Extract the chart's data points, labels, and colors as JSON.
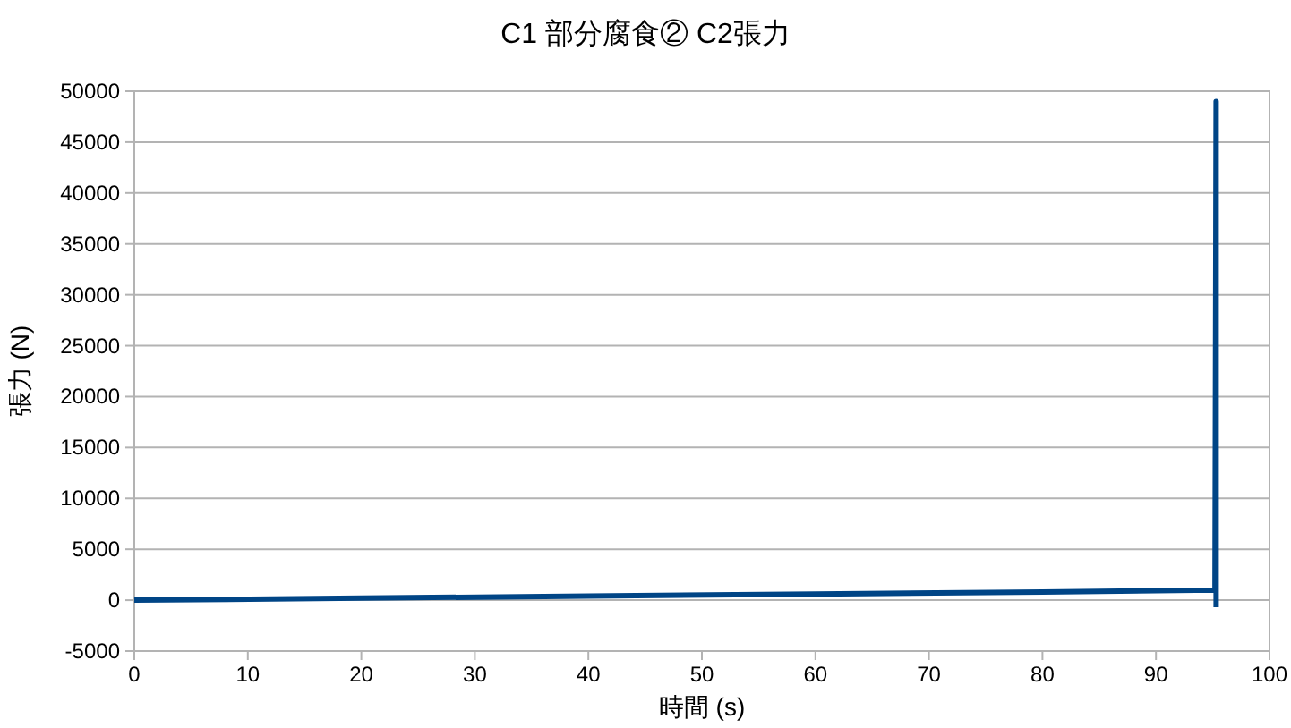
{
  "chart_data": {
    "type": "line",
    "title": "C1 部分腐食② C2張力",
    "xlabel": "時間 (s)",
    "ylabel": "張力 (N)",
    "series": [
      {
        "color": "#004586",
        "x": [
          0,
          20,
          40,
          60,
          80,
          95.2,
          95.3,
          95.3
        ],
        "values": [
          0,
          200,
          400,
          600,
          800,
          1000,
          49000,
          -700
        ]
      }
    ],
    "xlim": [
      0,
      100
    ],
    "xticks": [
      0,
      10,
      20,
      30,
      40,
      50,
      60,
      70,
      80,
      90,
      100
    ],
    "ylim": [
      -5000,
      50000
    ],
    "yticks": [
      -5000,
      0,
      5000,
      10000,
      15000,
      20000,
      25000,
      30000,
      35000,
      40000,
      45000,
      50000
    ],
    "grid": "y",
    "marker": "none",
    "line_style": "solid"
  }
}
